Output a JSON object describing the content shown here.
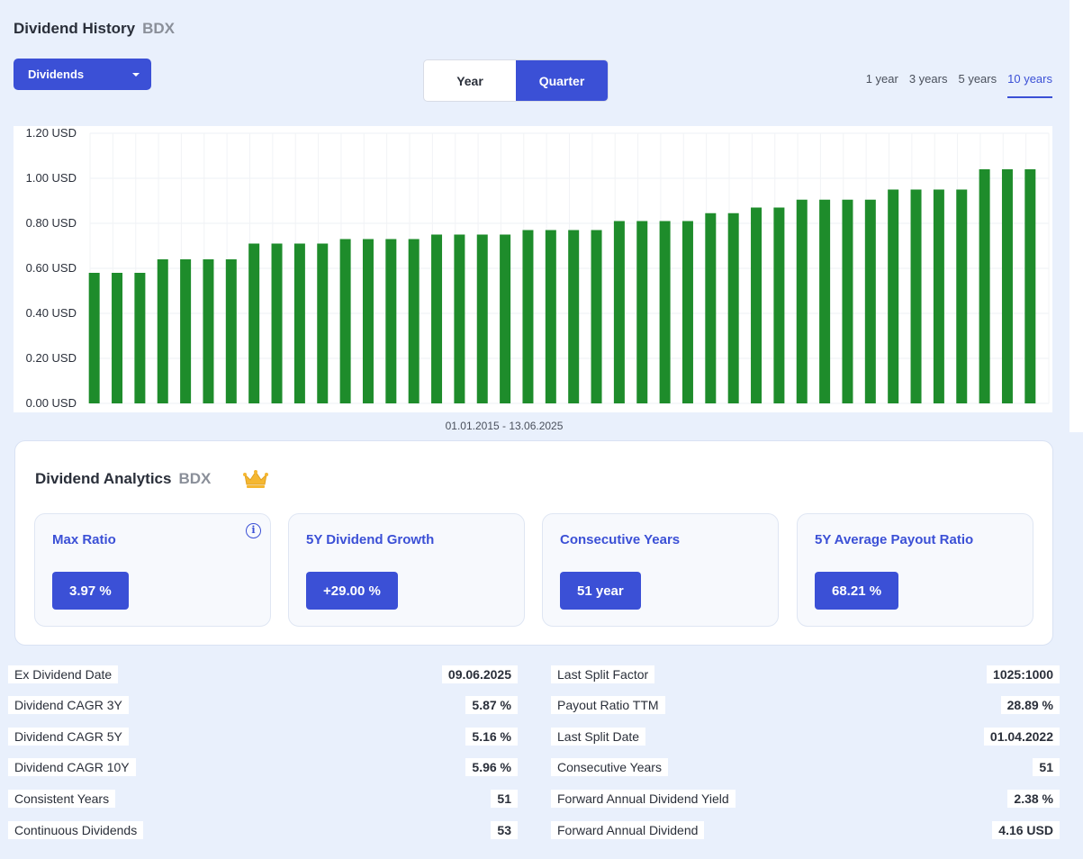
{
  "header": {
    "title": "Dividend History",
    "ticker": "BDX"
  },
  "dropdown": {
    "selected": "Dividends"
  },
  "period_toggle": {
    "options": [
      "Year",
      "Quarter"
    ],
    "active": "Quarter"
  },
  "ranges": {
    "options": [
      "1 year",
      "3 years",
      "5 years",
      "10 years"
    ],
    "active": "10 years"
  },
  "colors": {
    "accent": "#3b50d6",
    "bar": "#1e8c2b"
  },
  "chart_data": {
    "type": "bar",
    "ylabels": [
      "1.20 USD",
      "1.00 USD",
      "0.80 USD",
      "0.60 USD",
      "0.40 USD",
      "0.20 USD",
      "0.00 USD"
    ],
    "ylim": [
      0,
      1.2
    ],
    "grid": true,
    "values": [
      0.58,
      0.58,
      0.58,
      0.64,
      0.64,
      0.64,
      0.64,
      0.71,
      0.71,
      0.71,
      0.71,
      0.73,
      0.73,
      0.73,
      0.73,
      0.75,
      0.75,
      0.75,
      0.75,
      0.77,
      0.77,
      0.77,
      0.77,
      0.81,
      0.81,
      0.81,
      0.81,
      0.845,
      0.845,
      0.87,
      0.87,
      0.905,
      0.905,
      0.905,
      0.905,
      0.95,
      0.95,
      0.95,
      0.95,
      1.04,
      1.04,
      1.04
    ],
    "date_range": "01.01.2015 - 13.06.2025"
  },
  "analytics": {
    "title": "Dividend Analytics",
    "ticker": "BDX",
    "info_glyph": "i",
    "cards": [
      {
        "label": "Max Ratio",
        "value": "3.97 %"
      },
      {
        "label": "5Y Dividend Growth",
        "value": "+29.00 %"
      },
      {
        "label": "Consecutive Years",
        "value": "51 year"
      },
      {
        "label": "5Y Average Payout Ratio",
        "value": "68.21 %"
      }
    ]
  },
  "stats_left": [
    {
      "label": "Ex Dividend Date",
      "value": "09.06.2025"
    },
    {
      "label": "Dividend CAGR 3Y",
      "value": "5.87 %"
    },
    {
      "label": "Dividend CAGR 5Y",
      "value": "5.16 %"
    },
    {
      "label": "Dividend CAGR 10Y",
      "value": "5.96 %"
    },
    {
      "label": "Consistent Years",
      "value": "51"
    },
    {
      "label": "Continuous Dividends",
      "value": "53"
    }
  ],
  "stats_right": [
    {
      "label": "Last Split Factor",
      "value": "1025:1000"
    },
    {
      "label": "Payout Ratio TTM",
      "value": "28.89 %"
    },
    {
      "label": "Last Split Date",
      "value": "01.04.2022"
    },
    {
      "label": "Consecutive Years",
      "value": "51"
    },
    {
      "label": "Forward Annual Dividend Yield",
      "value": "2.38 %"
    },
    {
      "label": "Forward Annual Dividend",
      "value": "4.16 USD"
    }
  ]
}
